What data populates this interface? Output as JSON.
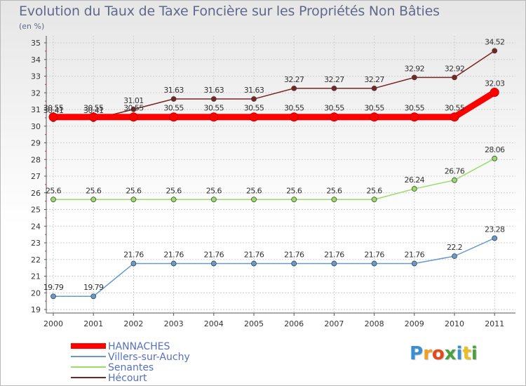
{
  "title": "Evolution du Taux de Taxe Foncière sur les Propriétés Non Bâties",
  "unit": "(en %)",
  "brand": {
    "letters": [
      "P",
      "r",
      "o",
      "x",
      "i",
      "t",
      "i"
    ],
    "colors": [
      "#3a8fd0",
      "#f0a020",
      "#e24a1c",
      "#4aa03c",
      "#3a8fd0",
      "#e8c020",
      "#4aa03c"
    ]
  },
  "chart_data": {
    "type": "line",
    "title": "Evolution du Taux de Taxe Foncière sur les Propriétés Non Bâties",
    "ylabel": "(en %)",
    "xlabel": "",
    "categories": [
      "2000",
      "2001",
      "2002",
      "2003",
      "2004",
      "2005",
      "2006",
      "2007",
      "2008",
      "2009",
      "2010",
      "2011"
    ],
    "ylim": [
      19,
      35
    ],
    "yticks": [
      "19",
      "20",
      "21",
      "22",
      "23",
      "24",
      "25",
      "26",
      "27",
      "28",
      "29",
      "30",
      "31",
      "32",
      "33",
      "34",
      "35"
    ],
    "grid": true,
    "legend_position": "bottom-left",
    "series": [
      {
        "name": "Hécourt",
        "color": "#7a2323",
        "values": [
          30.41,
          30.41,
          31.01,
          31.63,
          31.63,
          31.63,
          32.27,
          32.27,
          32.27,
          32.92,
          32.92,
          34.52
        ],
        "labels": [
          "30.41",
          "30.41",
          "31.01",
          "31.63",
          "31.63",
          "31.63",
          "32.27",
          "32.27",
          "32.27",
          "32.92",
          "32.92",
          "34.52"
        ]
      },
      {
        "name": "Senantes",
        "color": "#99dd66",
        "values": [
          25.6,
          25.6,
          25.6,
          25.6,
          25.6,
          25.6,
          25.6,
          25.6,
          25.6,
          26.24,
          26.76,
          28.06
        ],
        "labels": [
          "25.6",
          "25.6",
          "25.6",
          "25.6",
          "25.6",
          "25.6",
          "25.6",
          "25.6",
          "25.6",
          "26.24",
          "26.76",
          "28.06"
        ]
      },
      {
        "name": "Villers-sur-Auchy",
        "color": "#6699cc",
        "values": [
          19.79,
          19.79,
          21.76,
          21.76,
          21.76,
          21.76,
          21.76,
          21.76,
          21.76,
          21.76,
          22.2,
          23.28
        ],
        "labels": [
          "19.79",
          "19.79",
          "21.76",
          "21.76",
          "21.76",
          "21.76",
          "21.76",
          "21.76",
          "21.76",
          "21.76",
          "22.2",
          "23.28"
        ]
      },
      {
        "name": "HANNACHES",
        "color": "#ff0000",
        "values": [
          30.55,
          30.55,
          30.55,
          30.55,
          30.55,
          30.55,
          30.55,
          30.55,
          30.55,
          30.55,
          30.55,
          32.03
        ],
        "labels": [
          "30.55",
          "30.55",
          "30.55",
          "30.55",
          "30.55",
          "30.55",
          "30.55",
          "30.55",
          "30.55",
          "30.55",
          "30.55",
          "32.03"
        ]
      }
    ],
    "legend": [
      "HANNACHES",
      "Villers-sur-Auchy",
      "Senantes",
      "Hécourt"
    ]
  }
}
